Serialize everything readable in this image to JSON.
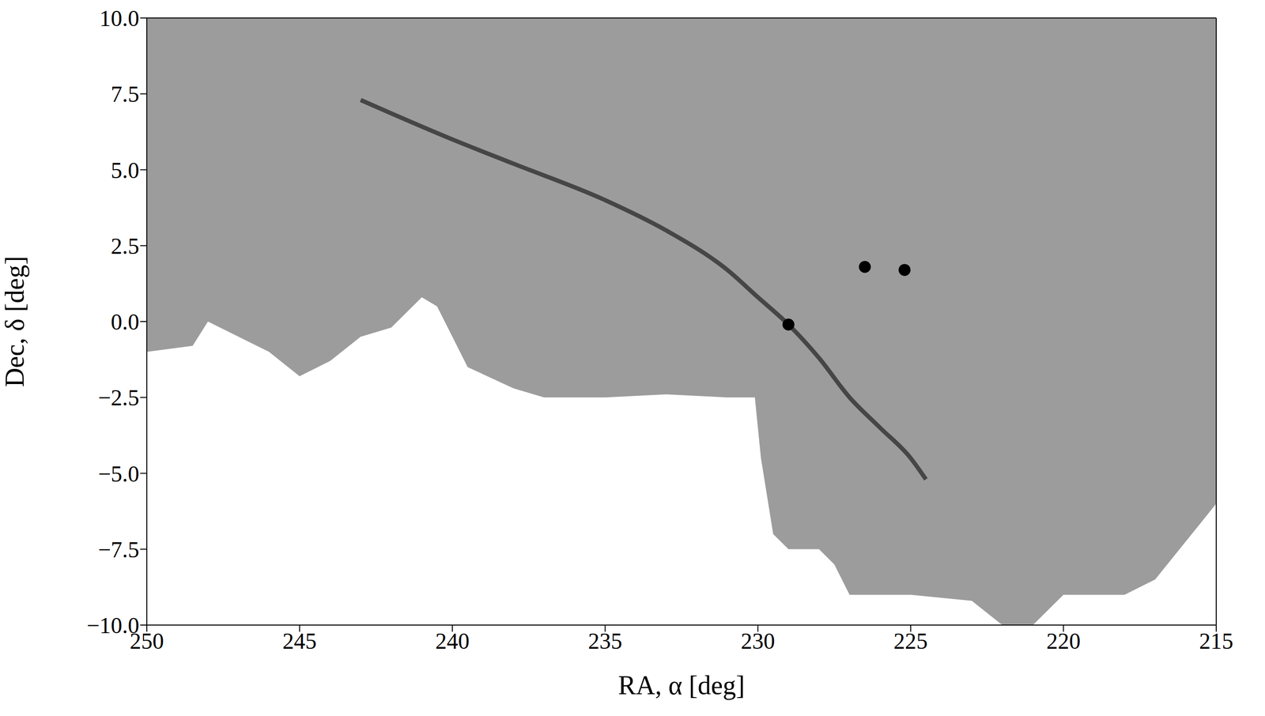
{
  "chart_data": {
    "type": "scatter",
    "x_label": "RA, α [deg]",
    "y_label": "Dec, δ [deg]",
    "xlim": [
      250,
      215
    ],
    "ylim": [
      -10,
      10
    ],
    "xticks": [
      250,
      245,
      240,
      235,
      230,
      225,
      220,
      215
    ],
    "yticks": [
      {
        "value": 10,
        "label": "10.0"
      },
      7.5,
      {
        "value": 5,
        "label": "5.0"
      },
      2.5,
      {
        "value": 0,
        "label": "0.0"
      },
      {
        "value": -2.5,
        "label": "−2.5"
      },
      {
        "value": -5,
        "label": "−5.0"
      },
      {
        "value": -7.5,
        "label": "−7.5"
      },
      {
        "value": -10,
        "label": "−10.0"
      }
    ],
    "series": [
      {
        "type": "area",
        "color": "#9c9c9c",
        "x": [
          250,
          248.5,
          248,
          247,
          246,
          245,
          244,
          243,
          242,
          241,
          240.5,
          240,
          239.5,
          238,
          237,
          235,
          233,
          231,
          230.1,
          229.9,
          229.5,
          229,
          228,
          227.5,
          227,
          225,
          223,
          222,
          221,
          220,
          218,
          217,
          215
        ],
        "y_low": [
          -1.0,
          -0.8,
          0.0,
          -0.5,
          -1.0,
          -1.8,
          -1.3,
          -0.5,
          -0.2,
          0.8,
          0.5,
          -0.5,
          -1.5,
          -2.2,
          -2.5,
          -2.5,
          -2.4,
          -2.5,
          -2.5,
          -4.5,
          -7.0,
          -7.5,
          -7.5,
          -8.0,
          -9.0,
          -9.0,
          -9.2,
          -10.0,
          -10.0,
          -9.0,
          -9.0,
          -8.5,
          -6.0
        ],
        "y_high": [
          10,
          10,
          10,
          10,
          10,
          10,
          10,
          10,
          10,
          10,
          10,
          10,
          10,
          10,
          10,
          10,
          10,
          10,
          10,
          10,
          10,
          10,
          10,
          10,
          10,
          10,
          10,
          10,
          10,
          10,
          10,
          10,
          10
        ]
      },
      {
        "type": "line",
        "color": "#2a2a2a",
        "x": [
          243,
          240,
          238,
          235,
          233,
          231,
          230,
          229,
          228,
          227,
          226,
          225,
          224.5
        ],
        "y": [
          7.3,
          6.0,
          5.2,
          4.0,
          3.0,
          1.7,
          0.8,
          -0.1,
          -1.2,
          -2.5,
          -3.5,
          -4.5,
          -5.2
        ]
      },
      {
        "type": "scatter",
        "color": "#000000",
        "x": [
          229.0,
          226.5,
          225.2
        ],
        "y": [
          -0.1,
          1.8,
          1.7
        ]
      }
    ]
  }
}
